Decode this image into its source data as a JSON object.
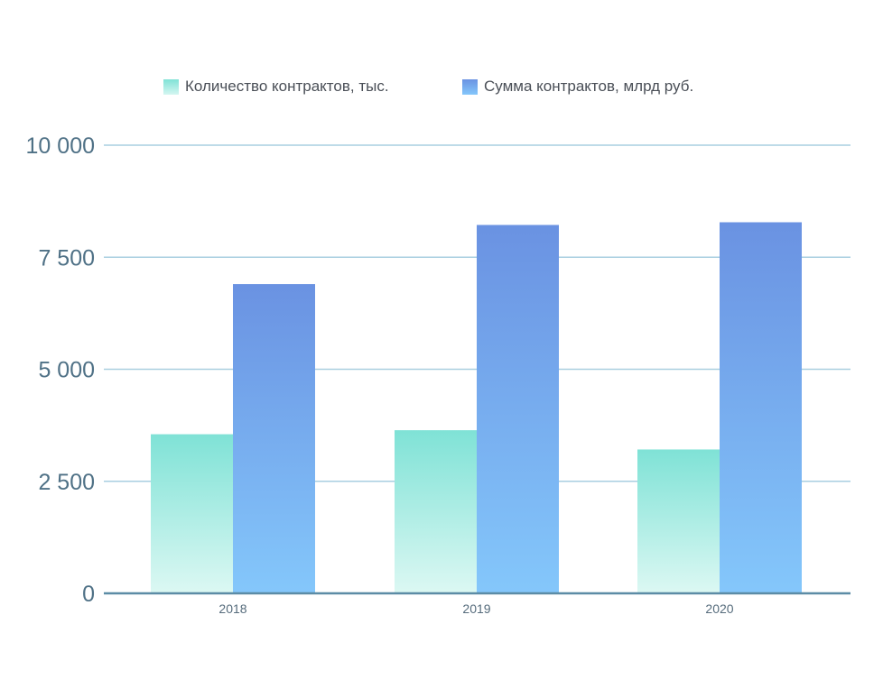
{
  "chart_data": {
    "type": "bar",
    "title": "",
    "xlabel": "",
    "ylabel": "",
    "categories": [
      "2018",
      "2019",
      "2020"
    ],
    "series": [
      {
        "name": "Количество контрактов, тыс.",
        "values": [
          3550,
          3640,
          3210
        ],
        "color_top": "#7fe2d6",
        "color_bottom": "#dcf8f3"
      },
      {
        "name": "Сумма контрактов, млрд руб.",
        "values": [
          6900,
          8220,
          8280
        ],
        "color_top": "#6a92e2",
        "color_bottom": "#84c7fb"
      }
    ],
    "ylim": [
      0,
      10000
    ],
    "yticks": [
      0,
      2500,
      5000,
      7500,
      10000
    ],
    "ytick_labels": [
      "0",
      "2 500",
      "5 000",
      "7 500",
      "10 000"
    ],
    "grid": true,
    "legend_position": "top",
    "colors": {
      "grid": "#a9cfe0",
      "axis": "#5c8ca6",
      "tick_text": "#4f7186",
      "category_text": "#566c7c"
    }
  }
}
